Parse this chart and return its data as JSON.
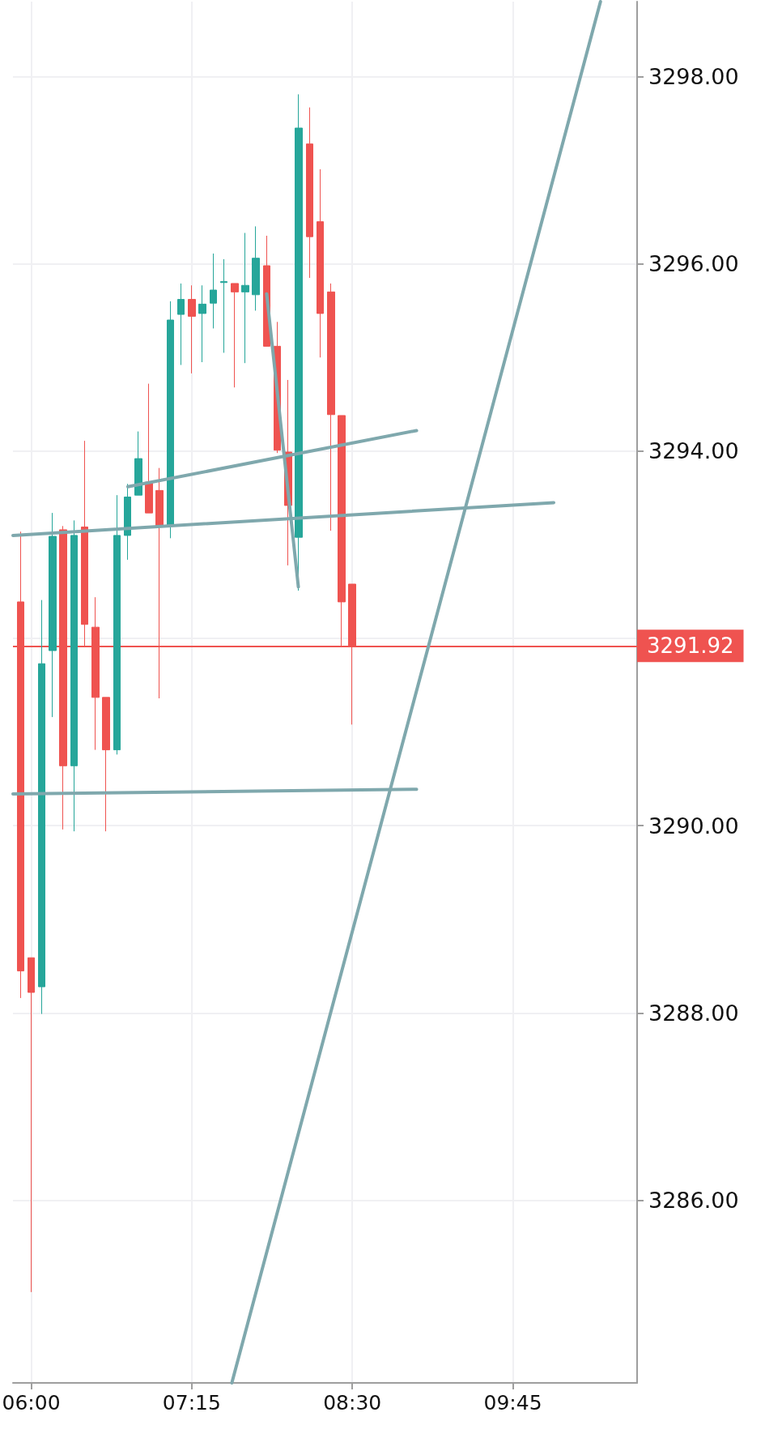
{
  "chart_data": {
    "type": "candlestick",
    "x": [
      5.9167,
      6,
      6.0833,
      6.1667,
      6.25,
      6.3333,
      6.4167,
      6.5,
      6.5833,
      6.6667,
      6.75,
      6.8333,
      6.9167,
      7,
      7.0833,
      7.1667,
      7.25,
      7.3333,
      7.4167,
      7.5,
      7.5833,
      7.6667,
      7.75,
      7.8333,
      7.9167,
      8,
      8.0833,
      8.1667,
      8.25,
      8.3333,
      8.4167,
      8.5
    ],
    "ohlc": [
      [
        3292.39,
        3293.14,
        3288.16,
        3288.45
      ],
      [
        3288.59,
        3288.59,
        3285.02,
        3288.22
      ],
      [
        3288.28,
        3292.41,
        3287.99,
        3291.73
      ],
      [
        3291.87,
        3293.34,
        3291.16,
        3293.09
      ],
      [
        3293.16,
        3293.2,
        3289.96,
        3290.64
      ],
      [
        3290.64,
        3293.26,
        3289.94,
        3293.1
      ],
      [
        3293.19,
        3294.11,
        3291.91,
        3292.15
      ],
      [
        3292.12,
        3292.44,
        3290.81,
        3291.37
      ],
      [
        3291.37,
        3291.37,
        3289.94,
        3290.81
      ],
      [
        3290.81,
        3293.53,
        3290.76,
        3293.1
      ],
      [
        3293.1,
        3293.65,
        3292.84,
        3293.51
      ],
      [
        3293.53,
        3294.21,
        3293.53,
        3293.92
      ],
      [
        3293.67,
        3294.72,
        3293.34,
        3293.34
      ],
      [
        3293.58,
        3293.82,
        3291.36,
        3293.2
      ],
      [
        3293.21,
        3295.6,
        3293.07,
        3295.4
      ],
      [
        3295.46,
        3295.79,
        3294.92,
        3295.62
      ],
      [
        3295.62,
        3295.77,
        3294.83,
        3295.44
      ],
      [
        3295.47,
        3295.77,
        3294.95,
        3295.57
      ],
      [
        3295.58,
        3296.11,
        3295.31,
        3295.72
      ],
      [
        3295.8,
        3296.05,
        3295.05,
        3295.81
      ],
      [
        3295.79,
        3295.79,
        3294.68,
        3295.7
      ],
      [
        3295.7,
        3296.33,
        3294.94,
        3295.77
      ],
      [
        3295.67,
        3296.4,
        3295.5,
        3296.06
      ],
      [
        3295.98,
        3296.3,
        3295.12,
        3295.12
      ],
      [
        3295.12,
        3295.38,
        3293.98,
        3294.01
      ],
      [
        3293.99,
        3294.76,
        3292.78,
        3293.42
      ],
      [
        3293.08,
        3297.81,
        3292.51,
        3297.45
      ],
      [
        3297.28,
        3297.67,
        3295.85,
        3296.29
      ],
      [
        3296.45,
        3297.01,
        3295,
        3295.47
      ],
      [
        3295.7,
        3295.79,
        3293.15,
        3294.39
      ],
      [
        3294.38,
        3294.38,
        3291.91,
        3292.39
      ],
      [
        3292.58,
        3292.58,
        3291.08,
        3291.92
      ]
    ],
    "colors": [
      "#ef5350",
      "#ef5350",
      "#26a69a",
      "#26a69a",
      "#ef5350",
      "#26a69a",
      "#ef5350",
      "#ef5350",
      "#ef5350",
      "#26a69a",
      "#26a69a",
      "#26a69a",
      "#ef5350",
      "#ef5350",
      "#26a69a",
      "#26a69a",
      "#ef5350",
      "#26a69a",
      "#26a69a",
      "#26a69a",
      "#ef5350",
      "#26a69a",
      "#26a69a",
      "#ef5350",
      "#ef5350",
      "#ef5350",
      "#26a69a",
      "#ef5350",
      "#ef5350",
      "#ef5350",
      "#ef5350",
      "#ef5350"
    ],
    "series": [
      {
        "type": "line",
        "color": "#7fa8ad",
        "x": [
          5.858,
          10.068
        ],
        "values": [
          3293.1,
          3293.45
        ]
      },
      {
        "type": "line",
        "color": "#7fa8ad",
        "x": [
          6.753,
          9.0
        ],
        "values": [
          3293.62,
          3294.22
        ]
      },
      {
        "type": "line",
        "color": "#7fa8ad",
        "x": [
          5.858,
          9.0
        ],
        "values": [
          3290.34,
          3290.39
        ]
      },
      {
        "type": "line",
        "color": "#7fa8ad",
        "x": [
          7.833,
          8.08
        ],
        "values": [
          3295.68,
          3292.55
        ]
      },
      {
        "type": "line",
        "color": "#7fa8ad",
        "x": [
          7.562,
          10.432
        ],
        "values": [
          3284.05,
          3298.8
        ]
      }
    ],
    "xlim": [
      5.858,
      10.717
    ],
    "xticks": [
      {
        "value": 6,
        "label": "06:00"
      },
      {
        "value": 7.25,
        "label": "07:15"
      },
      {
        "value": 8.5,
        "label": "08:30"
      },
      {
        "value": 9.75,
        "label": "09:45"
      }
    ],
    "ylim": [
      3284.05,
      3298.8
    ],
    "yticks": [
      {
        "value": 3286,
        "label": "3286.00"
      },
      {
        "value": 3288,
        "label": "3288.00"
      },
      {
        "value": 3290,
        "label": "3290.00"
      },
      {
        "value": 3292,
        "label": null
      },
      {
        "value": 3294,
        "label": "3294.00"
      },
      {
        "value": 3296,
        "label": "3296.00"
      },
      {
        "value": 3298,
        "label": "3298.00"
      }
    ],
    "ref_lines": [
      {
        "axis": "y",
        "value": 3291.92,
        "label": "3291.92",
        "color": "#ef5350"
      }
    ],
    "grid": true,
    "marker": "none",
    "line_style": "solid"
  }
}
